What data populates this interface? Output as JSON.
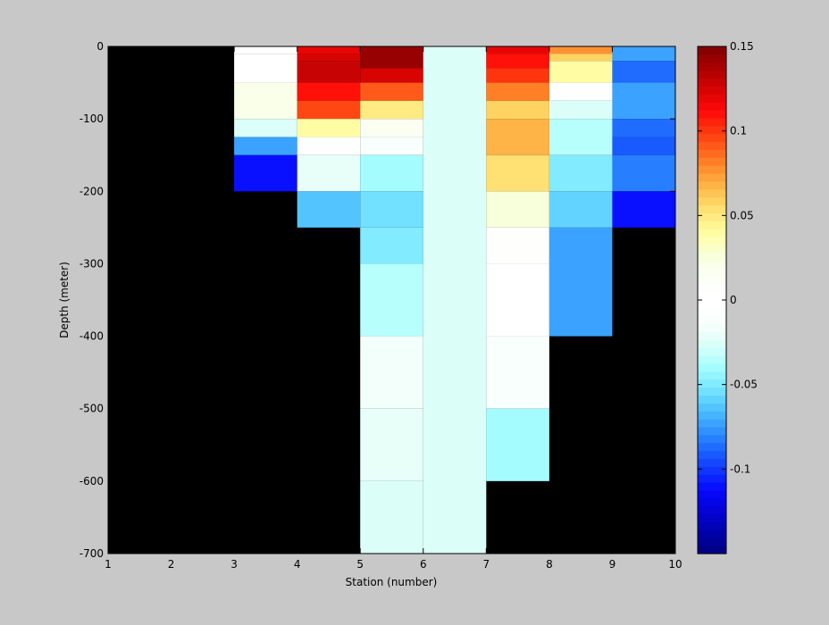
{
  "chart_data": {
    "type": "heatmap",
    "title": "",
    "xlabel": "Station (number)",
    "ylabel": "Depth (meter)",
    "xlim": [
      1,
      10
    ],
    "ylim": [
      -700,
      0
    ],
    "xticks": [
      "1",
      "2",
      "3",
      "4",
      "5",
      "6",
      "7",
      "8",
      "9",
      "10"
    ],
    "yticks": [
      "0",
      "-100",
      "-200",
      "-300",
      "-400",
      "-500",
      "-600",
      "-700"
    ],
    "colorbar": {
      "min": -0.15,
      "max": 0.15,
      "ticks": [
        "0.15",
        "0.1",
        "0.05",
        "0",
        "-0.05",
        "-0.1"
      ],
      "levels": 64
    },
    "background_color": "#000000",
    "cells": [
      {
        "station": [
          3,
          4
        ],
        "depth": [
          0,
          -10
        ],
        "value": 0.0
      },
      {
        "station": [
          3,
          4
        ],
        "depth": [
          -10,
          -50
        ],
        "value": 0.003
      },
      {
        "station": [
          3,
          4
        ],
        "depth": [
          -50,
          -100
        ],
        "value": 0.02
      },
      {
        "station": [
          3,
          4
        ],
        "depth": [
          -100,
          -125
        ],
        "value": -0.025
      },
      {
        "station": [
          3,
          4
        ],
        "depth": [
          -125,
          -150
        ],
        "value": -0.075
      },
      {
        "station": [
          3,
          4
        ],
        "depth": [
          -150,
          -200
        ],
        "value": -0.11
      },
      {
        "station": [
          4,
          5
        ],
        "depth": [
          0,
          -10
        ],
        "value": 0.12
      },
      {
        "station": [
          4,
          5
        ],
        "depth": [
          -10,
          -20
        ],
        "value": 0.125
      },
      {
        "station": [
          4,
          5
        ],
        "depth": [
          -20,
          -50
        ],
        "value": 0.13
      },
      {
        "station": [
          4,
          5
        ],
        "depth": [
          -50,
          -75
        ],
        "value": 0.11
      },
      {
        "station": [
          4,
          5
        ],
        "depth": [
          -75,
          -100
        ],
        "value": 0.095
      },
      {
        "station": [
          4,
          5
        ],
        "depth": [
          -100,
          -125
        ],
        "value": 0.04
      },
      {
        "station": [
          4,
          5
        ],
        "depth": [
          -125,
          -150
        ],
        "value": -0.005
      },
      {
        "station": [
          4,
          5
        ],
        "depth": [
          -150,
          -200
        ],
        "value": -0.02
      },
      {
        "station": [
          4,
          5
        ],
        "depth": [
          -200,
          -250
        ],
        "value": -0.065
      },
      {
        "station": [
          5,
          6
        ],
        "depth": [
          0,
          -30
        ],
        "value": 0.145
      },
      {
        "station": [
          5,
          6
        ],
        "depth": [
          -30,
          -50
        ],
        "value": 0.125
      },
      {
        "station": [
          5,
          6
        ],
        "depth": [
          -50,
          -75
        ],
        "value": 0.09
      },
      {
        "station": [
          5,
          6
        ],
        "depth": [
          -75,
          -100
        ],
        "value": 0.05
      },
      {
        "station": [
          5,
          6
        ],
        "depth": [
          -100,
          -125
        ],
        "value": 0.015
      },
      {
        "station": [
          5,
          6
        ],
        "depth": [
          -125,
          -150
        ],
        "value": -0.01
      },
      {
        "station": [
          5,
          6
        ],
        "depth": [
          -150,
          -200
        ],
        "value": -0.04
      },
      {
        "station": [
          5,
          6
        ],
        "depth": [
          -200,
          -250
        ],
        "value": -0.055
      },
      {
        "station": [
          5,
          6
        ],
        "depth": [
          -250,
          -300
        ],
        "value": -0.05
      },
      {
        "station": [
          5,
          6
        ],
        "depth": [
          -300,
          -400
        ],
        "value": -0.035
      },
      {
        "station": [
          5,
          6
        ],
        "depth": [
          -400,
          -500
        ],
        "value": -0.015
      },
      {
        "station": [
          5,
          6
        ],
        "depth": [
          -500,
          -600
        ],
        "value": -0.02
      },
      {
        "station": [
          5,
          6
        ],
        "depth": [
          -600,
          -700
        ],
        "value": -0.025
      },
      {
        "station": [
          6,
          7
        ],
        "depth": [
          0,
          -700
        ],
        "value": -0.025
      },
      {
        "station": [
          7,
          8
        ],
        "depth": [
          0,
          -10
        ],
        "value": 0.12
      },
      {
        "station": [
          7,
          8
        ],
        "depth": [
          -10,
          -30
        ],
        "value": 0.11
      },
      {
        "station": [
          7,
          8
        ],
        "depth": [
          -30,
          -50
        ],
        "value": 0.1
      },
      {
        "station": [
          7,
          8
        ],
        "depth": [
          -50,
          -75
        ],
        "value": 0.08
      },
      {
        "station": [
          7,
          8
        ],
        "depth": [
          -75,
          -100
        ],
        "value": 0.06
      },
      {
        "station": [
          7,
          8
        ],
        "depth": [
          -100,
          -150
        ],
        "value": 0.07
      },
      {
        "station": [
          7,
          8
        ],
        "depth": [
          -150,
          -200
        ],
        "value": 0.055
      },
      {
        "station": [
          7,
          8
        ],
        "depth": [
          -200,
          -250
        ],
        "value": 0.025
      },
      {
        "station": [
          7,
          8
        ],
        "depth": [
          -250,
          -300
        ],
        "value": 0.005
      },
      {
        "station": [
          7,
          8
        ],
        "depth": [
          -300,
          -400
        ],
        "value": 0.0
      },
      {
        "station": [
          7,
          8
        ],
        "depth": [
          -400,
          -500
        ],
        "value": -0.012
      },
      {
        "station": [
          7,
          8
        ],
        "depth": [
          -500,
          -600
        ],
        "value": -0.04
      },
      {
        "station": [
          8,
          9
        ],
        "depth": [
          0,
          -10
        ],
        "value": 0.075
      },
      {
        "station": [
          8,
          9
        ],
        "depth": [
          -10,
          -20
        ],
        "value": 0.06
      },
      {
        "station": [
          8,
          9
        ],
        "depth": [
          -20,
          -50
        ],
        "value": 0.04
      },
      {
        "station": [
          8,
          9
        ],
        "depth": [
          -50,
          -75
        ],
        "value": -0.005
      },
      {
        "station": [
          8,
          9
        ],
        "depth": [
          -75,
          -100
        ],
        "value": -0.025
      },
      {
        "station": [
          8,
          9
        ],
        "depth": [
          -100,
          -150
        ],
        "value": -0.035
      },
      {
        "station": [
          8,
          9
        ],
        "depth": [
          -150,
          -200
        ],
        "value": -0.05
      },
      {
        "station": [
          8,
          9
        ],
        "depth": [
          -200,
          -250
        ],
        "value": -0.06
      },
      {
        "station": [
          8,
          9
        ],
        "depth": [
          -250,
          -400
        ],
        "value": -0.075
      },
      {
        "station": [
          9,
          10
        ],
        "depth": [
          0,
          -20
        ],
        "value": -0.075
      },
      {
        "station": [
          9,
          10
        ],
        "depth": [
          -20,
          -50
        ],
        "value": -0.085
      },
      {
        "station": [
          9,
          10
        ],
        "depth": [
          -50,
          -100
        ],
        "value": -0.075
      },
      {
        "station": [
          9,
          10
        ],
        "depth": [
          -100,
          -125
        ],
        "value": -0.085
      },
      {
        "station": [
          9,
          10
        ],
        "depth": [
          -125,
          -150
        ],
        "value": -0.09
      },
      {
        "station": [
          9,
          10
        ],
        "depth": [
          -150,
          -200
        ],
        "value": -0.08
      },
      {
        "station": [
          9,
          10
        ],
        "depth": [
          -200,
          -250
        ],
        "value": -0.11
      }
    ]
  }
}
